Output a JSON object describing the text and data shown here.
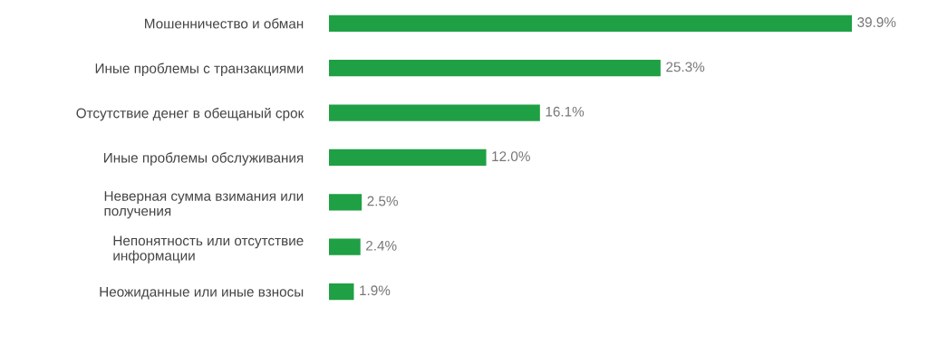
{
  "chart_data": {
    "type": "bar",
    "orientation": "horizontal",
    "categories": [
      "Мошенничество и обман",
      "Иные проблемы с транзакциями",
      "Отсутствие денег в обещаный срок",
      "Иные проблемы обслуживания",
      "Неверная сумма взимания или\nполучения",
      "Непонятность или отсутствие\nинформации",
      "Неожиданные или иные взносы"
    ],
    "values": [
      39.9,
      25.3,
      16.1,
      12.0,
      2.5,
      2.4,
      1.9
    ],
    "value_labels": [
      "39.9%",
      "25.3%",
      "16.1%",
      "12.0%",
      "2.5%",
      "2.4%",
      "1.9%"
    ],
    "color": "#1fa045",
    "grid": false,
    "legend": false,
    "tick_labels": "y"
  }
}
